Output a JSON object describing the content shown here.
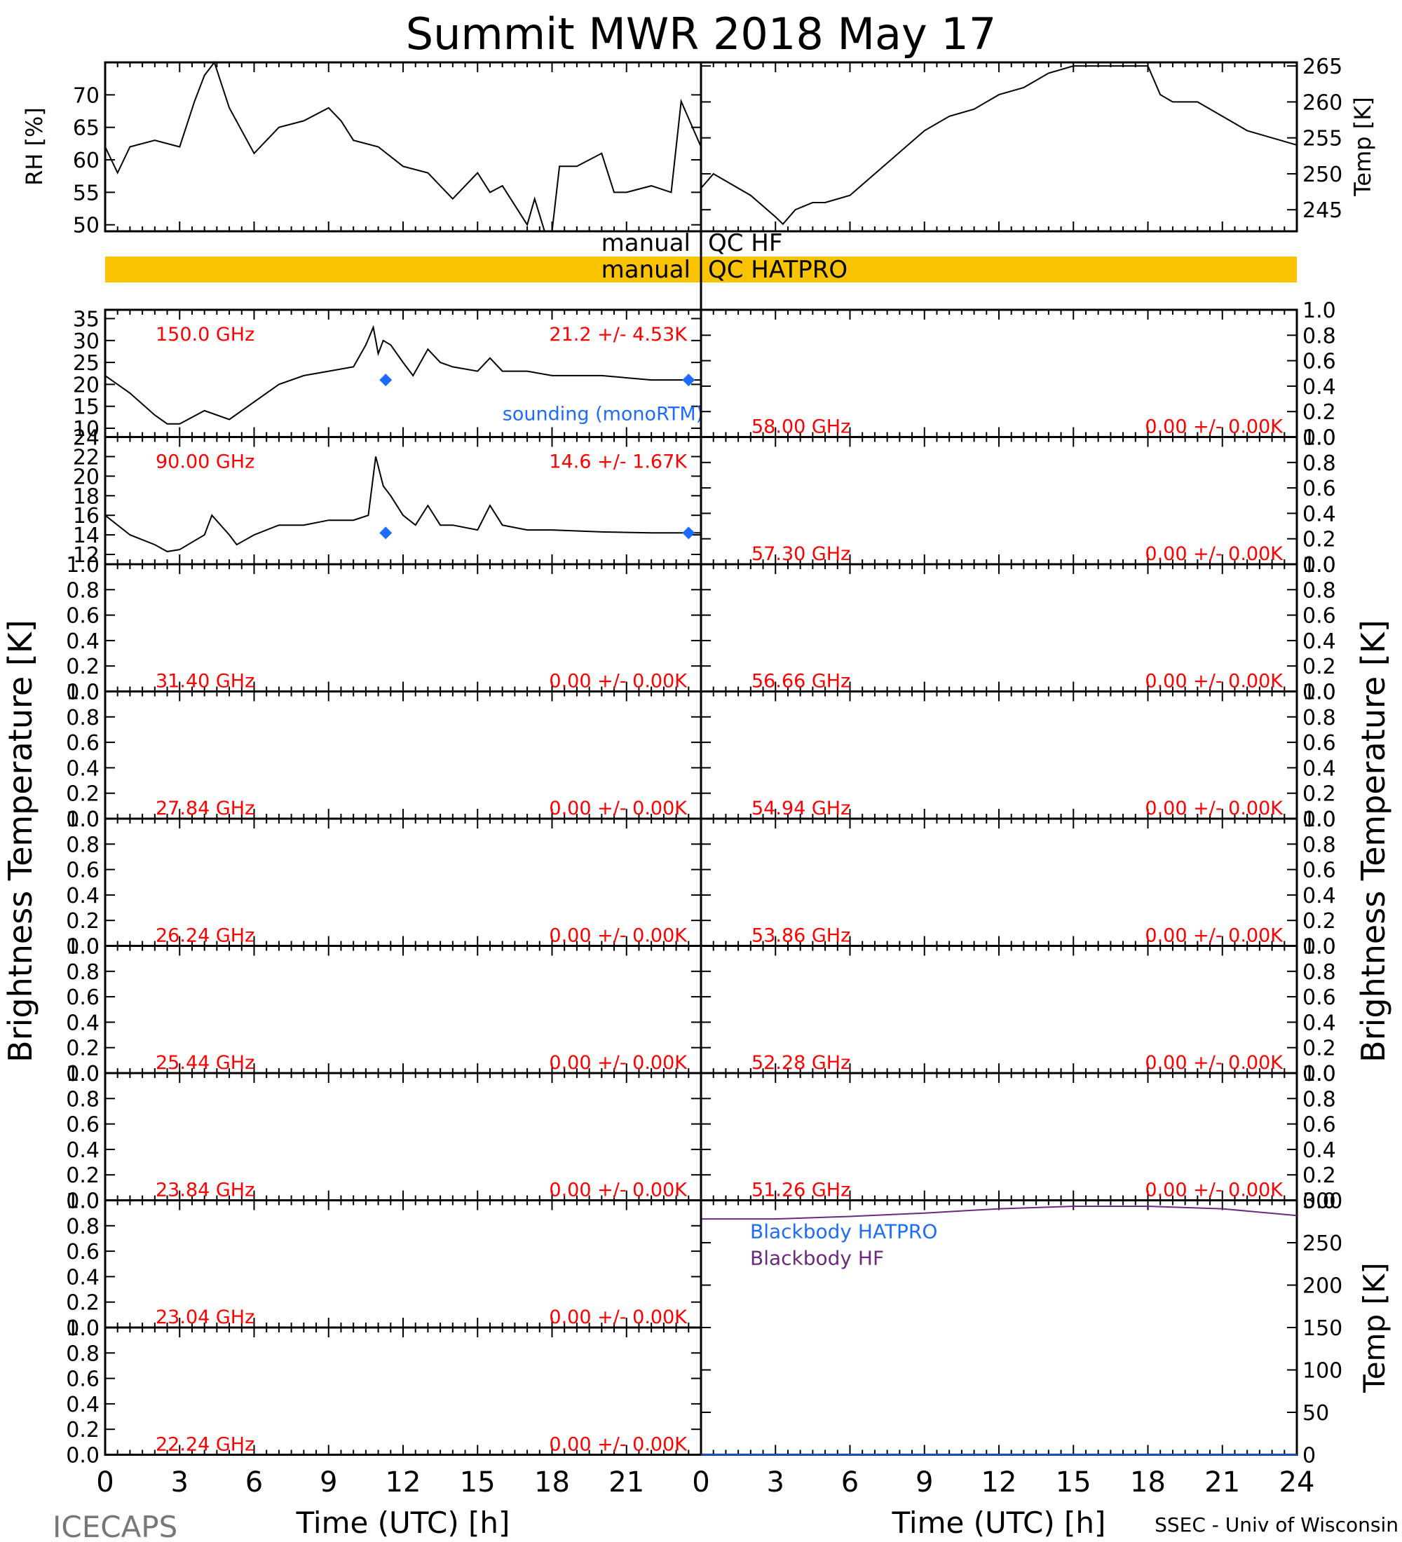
{
  "title": "Summit MWR 2018 May 17",
  "footer": {
    "left": "ICECAPS",
    "right": "SSEC - Univ of Wisconsin"
  },
  "xlabel": "Time (UTC) [h]",
  "left_ylabel": "Brightness Temperature [K]",
  "right_ylabel": "Brightness Temperature [K]",
  "qc": {
    "hf_label": "manual QC HF",
    "hatpro_label": "manual QC HATPRO",
    "hatpro_color": "#F9C300"
  },
  "colors": {
    "trace": "#000000",
    "label": "#FF0000",
    "sounding": "#1E6CFF",
    "bb_hf": "#6B2A7E",
    "bb_hatpro": "#1E6CFF"
  },
  "chart_data": [
    {
      "id": "rh",
      "type": "line",
      "ylabel": "RH [%]",
      "ylim": [
        49,
        75
      ],
      "yticks": [
        50,
        55,
        60,
        65,
        70
      ],
      "xlim": [
        0,
        24
      ],
      "series": [
        {
          "x": [
            0,
            0.5,
            1,
            2,
            3,
            3.6,
            4,
            4.4,
            5,
            6,
            7,
            8,
            9,
            9.5,
            10,
            11,
            12,
            13,
            14,
            15,
            15.5,
            16,
            17,
            17.3,
            17.7,
            18,
            18.3,
            19,
            20,
            20.5,
            21,
            22,
            22.8,
            23.2,
            24
          ],
          "y": [
            62,
            58,
            62,
            63,
            62,
            69,
            73,
            75,
            68,
            61,
            65,
            66,
            68,
            66,
            63,
            62,
            59,
            58,
            54,
            58,
            55,
            56,
            50,
            54,
            49,
            49,
            59,
            59,
            61,
            55,
            55,
            56,
            55,
            69,
            62
          ]
        }
      ]
    },
    {
      "id": "temp",
      "type": "line",
      "ylabel": "Temp [K]",
      "ylim": [
        242,
        265.5
      ],
      "yticks": [
        245,
        250,
        255,
        260,
        265
      ],
      "xlim": [
        0,
        24
      ],
      "series": [
        {
          "x": [
            0,
            0.5,
            1,
            2,
            3,
            3.3,
            3.8,
            4.5,
            5,
            6,
            7,
            8,
            9,
            10,
            11,
            12,
            13,
            14,
            15,
            16,
            17,
            18,
            18.5,
            19,
            20,
            21,
            22,
            23,
            24
          ],
          "y": [
            248,
            250,
            249,
            247,
            244,
            243,
            245,
            246,
            246,
            247,
            250,
            253,
            256,
            258,
            259,
            261,
            262,
            264,
            265,
            265,
            265,
            265,
            261,
            260,
            260,
            258,
            256,
            255,
            254
          ]
        }
      ]
    },
    {
      "id": "tb150",
      "type": "line",
      "channel": "150.0 GHz",
      "stats": "21.2 +/-  4.53K",
      "ylim": [
        8,
        37
      ],
      "yticks": [
        10,
        15,
        20,
        25,
        30,
        35
      ],
      "xlim": [
        0,
        24
      ],
      "series": [
        {
          "x": [
            0,
            1,
            2,
            2.5,
            3,
            4,
            5,
            6,
            7,
            8,
            9,
            10,
            10.5,
            10.8,
            11,
            11.2,
            11.5,
            12,
            12.4,
            13,
            13.5,
            14,
            15,
            15.5,
            16,
            17,
            18,
            20,
            22,
            24
          ],
          "y": [
            22,
            18,
            13,
            11,
            11,
            14,
            12,
            16,
            20,
            22,
            23,
            24,
            29,
            33,
            27,
            30,
            29,
            25,
            22,
            28,
            25,
            24,
            23,
            26,
            23,
            23,
            22,
            22,
            21,
            21
          ]
        }
      ],
      "sounding": {
        "label": "sounding (monoRTM)",
        "x": [
          11.3,
          23.5
        ],
        "y": [
          21,
          21
        ]
      }
    },
    {
      "id": "tb90",
      "type": "line",
      "channel": "90.00 GHz",
      "stats": "14.6 +/-  1.67K",
      "ylim": [
        11,
        24
      ],
      "yticks": [
        12,
        14,
        16,
        18,
        20,
        22,
        24
      ],
      "xlim": [
        0,
        24
      ],
      "series": [
        {
          "x": [
            0,
            1,
            2,
            2.5,
            3,
            4,
            4.3,
            5,
            5.3,
            6,
            7,
            8,
            9,
            10,
            10.6,
            10.9,
            11.2,
            11.5,
            12,
            12.5,
            13,
            13.5,
            14,
            15,
            15.5,
            16,
            17,
            18,
            20,
            22,
            24
          ],
          "y": [
            16,
            14,
            13,
            12.3,
            12.5,
            14,
            16,
            14,
            13,
            14,
            15,
            15,
            15.5,
            15.5,
            16,
            22,
            19,
            18,
            16,
            15,
            17,
            15,
            15,
            14.5,
            17,
            15,
            14.5,
            14.5,
            14.3,
            14.2,
            14.2
          ]
        }
      ],
      "sounding": {
        "x": [
          11.3,
          23.5
        ],
        "y": [
          14.2,
          14.2
        ]
      }
    },
    {
      "id": "lf31",
      "channel": "31.40 GHz",
      "stats": "0.00 +/-  0.00K"
    },
    {
      "id": "lf27",
      "channel": "27.84 GHz",
      "stats": "0.00 +/-  0.00K"
    },
    {
      "id": "lf26",
      "channel": "26.24 GHz",
      "stats": "0.00 +/-  0.00K"
    },
    {
      "id": "lf25",
      "channel": "25.44 GHz",
      "stats": "0.00 +/-  0.00K"
    },
    {
      "id": "lf238",
      "channel": "23.84 GHz",
      "stats": "0.00 +/-  0.00K"
    },
    {
      "id": "lf230",
      "channel": "23.04 GHz",
      "stats": "0.00 +/-  0.00K"
    },
    {
      "id": "lf22",
      "channel": "22.24 GHz",
      "stats": "0.00 +/-  0.00K"
    },
    {
      "id": "v58",
      "channel": "58.00 GHz",
      "stats": "0.00 +/-  0.00K"
    },
    {
      "id": "v57",
      "channel": "57.30 GHz",
      "stats": "0.00 +/-  0.00K"
    },
    {
      "id": "v56",
      "channel": "56.66 GHz",
      "stats": "0.00 +/-  0.00K"
    },
    {
      "id": "v54",
      "channel": "54.94 GHz",
      "stats": "0.00 +/-  0.00K"
    },
    {
      "id": "v53",
      "channel": "53.86 GHz",
      "stats": "0.00 +/-  0.00K"
    },
    {
      "id": "v52",
      "channel": "52.28 GHz",
      "stats": "0.00 +/-  0.00K"
    },
    {
      "id": "v51",
      "channel": "51.26 GHz",
      "stats": "0.00 +/-  0.00K"
    },
    {
      "id": "blackbody",
      "type": "line",
      "ylabel": "Temp [K]",
      "ylim": [
        0,
        300
      ],
      "yticks": [
        0,
        50,
        100,
        150,
        200,
        250,
        300
      ],
      "xlim": [
        0,
        24
      ],
      "series": [
        {
          "name": "Blackbody HATPRO",
          "x": [
            0,
            24
          ],
          "y": [
            0,
            0
          ]
        },
        {
          "name": "Blackbody HF",
          "x": [
            0,
            3,
            6,
            9,
            12,
            15,
            18,
            21,
            24
          ],
          "y": [
            278,
            278,
            281,
            285,
            290,
            293,
            293,
            290,
            282
          ]
        }
      ]
    }
  ],
  "empty_yticks": [
    0.0,
    0.2,
    0.4,
    0.6,
    0.8,
    1.0
  ],
  "xticks_left": [
    0,
    3,
    6,
    9,
    12,
    15,
    18,
    21
  ],
  "xticks_right": [
    0,
    3,
    6,
    9,
    12,
    15,
    18,
    21,
    24
  ]
}
